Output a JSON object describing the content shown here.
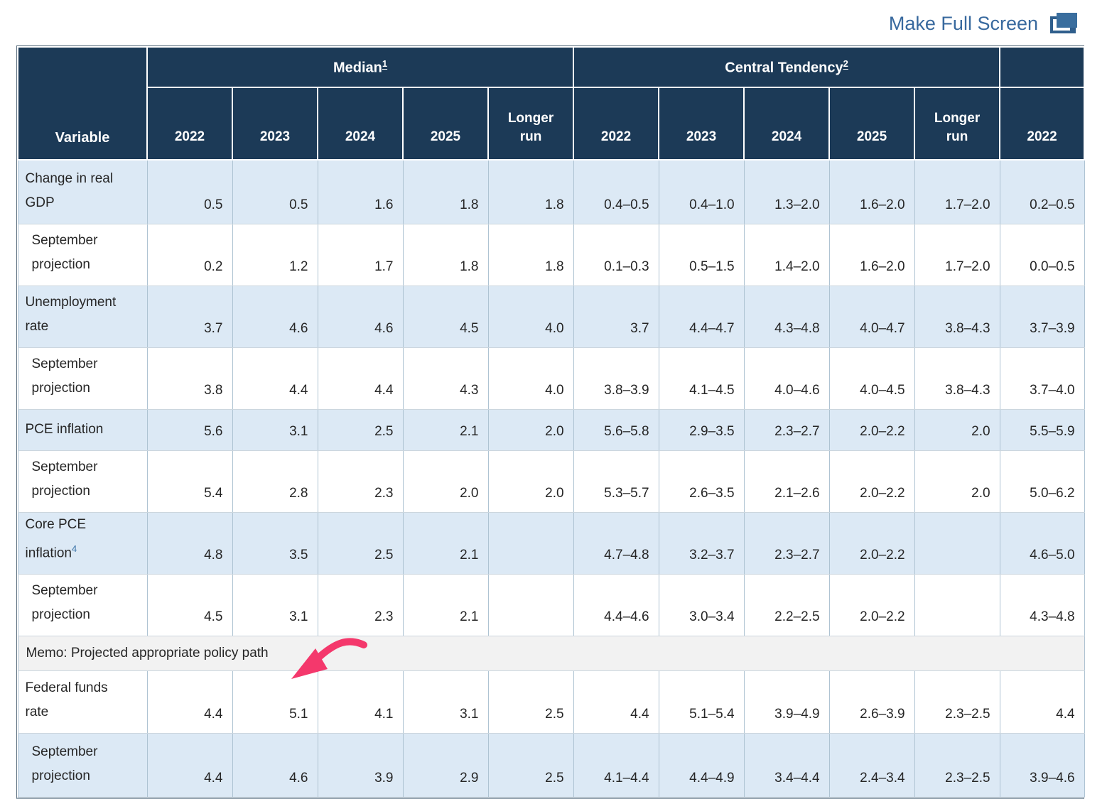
{
  "page": {
    "make_full_screen": "Make Full Screen"
  },
  "colors": {
    "header_navy": "#1C3A57",
    "row_blue": "#DCE9F5",
    "memo_gray": "#F2F2F2",
    "link_blue": "#38699E",
    "arrow_pink": "#F4386C"
  },
  "table": {
    "variable_header": "Variable",
    "groups": [
      {
        "label": "Median",
        "sup": "1",
        "years": [
          "2022",
          "2023",
          "2024",
          "2025",
          "Longer run"
        ]
      },
      {
        "label": "Central Tendency",
        "sup": "2",
        "years": [
          "2022",
          "2023",
          "2024",
          "2025",
          "Longer run"
        ]
      },
      {
        "label": "",
        "sup": "",
        "years": [
          "2022"
        ]
      }
    ],
    "rows": [
      {
        "kind": "data",
        "stripe": "blue",
        "indent": false,
        "label": "Change in real GDP",
        "sup": "",
        "cells": [
          "0.5",
          "0.5",
          "1.6",
          "1.8",
          "1.8",
          "0.4–0.5",
          "0.4–1.0",
          "1.3–2.0",
          "1.6–2.0",
          "1.7–2.0",
          "0.2–0.5"
        ]
      },
      {
        "kind": "data",
        "stripe": "white",
        "indent": true,
        "label": "September projection",
        "sup": "",
        "cells": [
          "0.2",
          "1.2",
          "1.7",
          "1.8",
          "1.8",
          "0.1–0.3",
          "0.5–1.5",
          "1.4–2.0",
          "1.6–2.0",
          "1.7–2.0",
          "0.0–0.5"
        ]
      },
      {
        "kind": "data",
        "stripe": "blue",
        "indent": false,
        "label": "Unemployment rate",
        "sup": "",
        "cells": [
          "3.7",
          "4.6",
          "4.6",
          "4.5",
          "4.0",
          "3.7",
          "4.4–4.7",
          "4.3–4.8",
          "4.0–4.7",
          "3.8–4.3",
          "3.7–3.9"
        ]
      },
      {
        "kind": "data",
        "stripe": "white",
        "indent": true,
        "label": "September projection",
        "sup": "",
        "cells": [
          "3.8",
          "4.4",
          "4.4",
          "4.3",
          "4.0",
          "3.8–3.9",
          "4.1–4.5",
          "4.0–4.6",
          "4.0–4.5",
          "3.8–4.3",
          "3.7–4.0"
        ]
      },
      {
        "kind": "data",
        "stripe": "blue",
        "indent": false,
        "label": "PCE inflation",
        "sup": "",
        "cells": [
          "5.6",
          "3.1",
          "2.5",
          "2.1",
          "2.0",
          "5.6–5.8",
          "2.9–3.5",
          "2.3–2.7",
          "2.0–2.2",
          "2.0",
          "5.5–5.9"
        ]
      },
      {
        "kind": "data",
        "stripe": "white",
        "indent": true,
        "label": "September projection",
        "sup": "",
        "cells": [
          "5.4",
          "2.8",
          "2.3",
          "2.0",
          "2.0",
          "5.3–5.7",
          "2.6–3.5",
          "2.1–2.6",
          "2.0–2.2",
          "2.0",
          "5.0–6.2"
        ]
      },
      {
        "kind": "data",
        "stripe": "blue",
        "indent": false,
        "label": "Core PCE inflation",
        "sup": "4",
        "cells": [
          "4.8",
          "3.5",
          "2.5",
          "2.1",
          "",
          "4.7–4.8",
          "3.2–3.7",
          "2.3–2.7",
          "2.0–2.2",
          "",
          "4.6–5.0"
        ]
      },
      {
        "kind": "data",
        "stripe": "white",
        "indent": true,
        "label": "September projection",
        "sup": "",
        "cells": [
          "4.5",
          "3.1",
          "2.3",
          "2.1",
          "",
          "4.4–4.6",
          "3.0–3.4",
          "2.2–2.5",
          "2.0–2.2",
          "",
          "4.3–4.8"
        ]
      },
      {
        "kind": "memo",
        "label": "Memo: Projected appropriate policy path"
      },
      {
        "kind": "data",
        "stripe": "white",
        "indent": false,
        "label": "Federal funds rate",
        "sup": "",
        "cells": [
          "4.4",
          "5.1",
          "4.1",
          "3.1",
          "2.5",
          "4.4",
          "5.1–5.4",
          "3.9–4.9",
          "2.6–3.9",
          "2.3–2.5",
          "4.4"
        ]
      },
      {
        "kind": "data",
        "stripe": "blue",
        "indent": true,
        "label": "September projection",
        "sup": "",
        "cells": [
          "4.4",
          "4.6",
          "3.9",
          "2.9",
          "2.5",
          "4.1–4.4",
          "4.4–4.9",
          "3.4–4.4",
          "2.4–3.4",
          "2.3–2.5",
          "3.9–4.6"
        ]
      }
    ],
    "annotation": {
      "target": "Federal funds rate 2023 median value 5.1",
      "arrow_color": "#F4386C"
    }
  }
}
